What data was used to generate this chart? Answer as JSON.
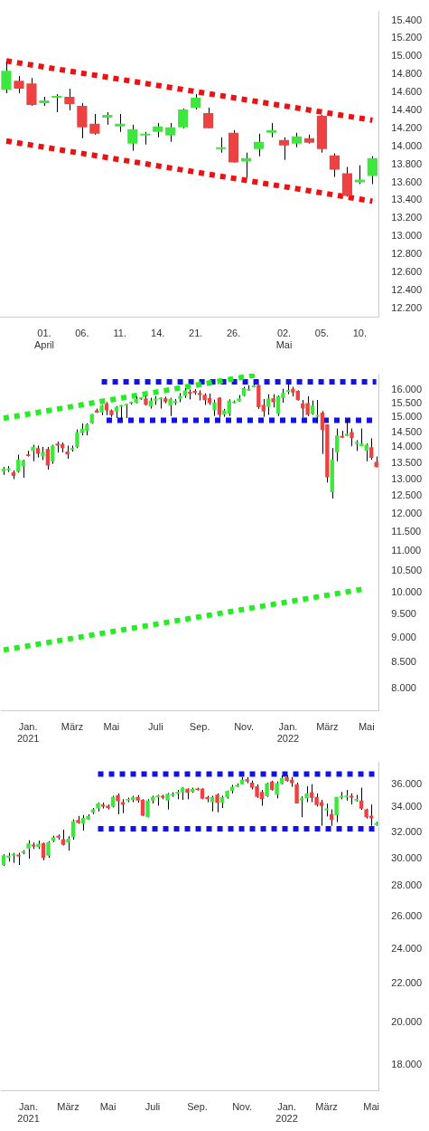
{
  "chart_data": [
    {
      "type": "candlestick",
      "categories": [
        null,
        null,
        null,
        "01.\nApril",
        null,
        null,
        "06.",
        null,
        null,
        "11.",
        null,
        null,
        "14.",
        null,
        null,
        "21.",
        null,
        null,
        "26.",
        null,
        null,
        null,
        "02.\nMai",
        null,
        null,
        "05.",
        null,
        null,
        "10.",
        null
      ],
      "ohlc": [
        [
          14630,
          14930,
          14590,
          14840
        ],
        [
          14730,
          14780,
          14590,
          14640
        ],
        [
          14700,
          14760,
          14450,
          14460
        ],
        [
          14480,
          14550,
          14450,
          14510
        ],
        [
          14540,
          14580,
          14380,
          14560
        ],
        [
          14550,
          14640,
          14400,
          14470
        ],
        [
          14450,
          14480,
          14090,
          14210
        ],
        [
          14250,
          14360,
          14130,
          14140
        ],
        [
          14320,
          14380,
          14240,
          14350
        ],
        [
          14220,
          14360,
          14160,
          14250
        ],
        [
          14030,
          14240,
          13950,
          14190
        ],
        [
          14120,
          14160,
          14020,
          14140
        ],
        [
          14160,
          14260,
          14100,
          14220
        ],
        [
          14120,
          14260,
          14050,
          14210
        ],
        [
          14210,
          14420,
          14200,
          14410
        ],
        [
          14430,
          14580,
          14410,
          14540
        ],
        [
          14370,
          14430,
          14200,
          14200
        ],
        [
          13970,
          14100,
          13930,
          13990
        ],
        [
          14150,
          14180,
          13820,
          13820
        ],
        [
          13830,
          13930,
          13650,
          13870
        ],
        [
          13970,
          14140,
          13890,
          14050
        ],
        [
          14150,
          14260,
          14100,
          14180
        ],
        [
          14070,
          14100,
          13850,
          14010
        ],
        [
          14030,
          14150,
          13990,
          14110
        ],
        [
          14090,
          14130,
          14030,
          14040
        ],
        [
          14340,
          14350,
          13930,
          13970
        ],
        [
          13900,
          13920,
          13660,
          13740
        ],
        [
          13700,
          13770,
          13440,
          13450
        ],
        [
          13600,
          13790,
          13580,
          13630
        ],
        [
          13670,
          13890,
          13580,
          13870
        ]
      ],
      "colors": [
        "#3de83d",
        "#ee4141",
        "#ee4141",
        "#3de83d",
        "#3de83d",
        "#ee4141",
        "#ee4141",
        "#ee4141",
        "#3de83d",
        "#3de83d",
        "#3de83d",
        "#3de83d",
        "#3de83d",
        "#3de83d",
        "#3de83d",
        "#3de83d",
        "#ee4141",
        "#3de83d",
        "#ee4141",
        "#3de83d",
        "#3de83d",
        "#3de83d",
        "#ee4141",
        "#3de83d",
        "#ee4141",
        "#ee4141",
        "#ee4141",
        "#ee4141",
        "#3de83d",
        "#3de83d"
      ],
      "series": [
        {
          "type": "line",
          "color": "#ee1111",
          "line_style": "dotted",
          "values": [
            14950,
            null,
            null,
            null,
            null,
            null,
            null,
            null,
            null,
            null,
            null,
            null,
            null,
            null,
            null,
            null,
            null,
            null,
            null,
            null,
            null,
            null,
            null,
            null,
            null,
            null,
            null,
            null,
            null,
            14290
          ]
        },
        {
          "type": "line",
          "color": "#ee1111",
          "line_style": "dotted",
          "values": [
            14060,
            null,
            null,
            null,
            null,
            null,
            null,
            null,
            null,
            null,
            null,
            null,
            null,
            null,
            null,
            null,
            null,
            null,
            null,
            null,
            null,
            null,
            null,
            null,
            null,
            null,
            null,
            null,
            null,
            13390
          ]
        }
      ],
      "ylim": [
        12100,
        15500
      ],
      "yticks": [
        {
          "value": 12200,
          "label": "12.200"
        },
        {
          "value": 12400,
          "label": "12.400"
        },
        {
          "value": 12600,
          "label": "12.600"
        },
        {
          "value": 12800,
          "label": "12.800"
        },
        {
          "value": 13000,
          "label": "13.000"
        },
        {
          "value": 13200,
          "label": "13.200"
        },
        {
          "value": 13400,
          "label": "13.400"
        },
        {
          "value": 13600,
          "label": "13.600"
        },
        {
          "value": 13800,
          "label": "13.800"
        },
        {
          "value": 14000,
          "label": "14.000"
        },
        {
          "value": 14200,
          "label": "14.200"
        },
        {
          "value": 14400,
          "label": "14.400"
        },
        {
          "value": 14600,
          "label": "14.600"
        },
        {
          "value": 14800,
          "label": "14.800"
        },
        {
          "value": 15000,
          "label": "15.000"
        },
        {
          "value": 15200,
          "label": "15.200"
        },
        {
          "value": 15400,
          "label": "15.400"
        }
      ]
    },
    {
      "type": "candlestick",
      "log": true,
      "categories": [
        null,
        null,
        null,
        null,
        null,
        "Jan.\n2021",
        null,
        null,
        null,
        null,
        null,
        null,
        null,
        null,
        "März",
        null,
        null,
        null,
        null,
        null,
        null,
        null,
        "Mai",
        null,
        null,
        null,
        null,
        null,
        null,
        null,
        null,
        "Juli",
        null,
        null,
        null,
        null,
        null,
        null,
        null,
        null,
        "Sep.",
        null,
        null,
        null,
        null,
        null,
        null,
        null,
        null,
        "Nov.",
        null,
        null,
        null,
        null,
        null,
        null,
        null,
        null,
        "Jan.\n2022",
        null,
        null,
        null,
        null,
        null,
        null,
        null,
        "März",
        null,
        null,
        null,
        null,
        null,
        null,
        null,
        "Mai",
        null,
        null
      ],
      "ohlc": [
        [
          13240,
          13370,
          13130,
          13320
        ],
        [
          13270,
          13400,
          13220,
          13330
        ],
        [
          13210,
          13270,
          13000,
          13100
        ],
        [
          13230,
          13760,
          13200,
          13600
        ],
        [
          13400,
          13600,
          13040,
          13580
        ],
        [
          13770,
          13880,
          13700,
          13720
        ],
        [
          13880,
          14080,
          13550,
          14010
        ],
        [
          13970,
          14050,
          13670,
          13790
        ],
        [
          13700,
          14010,
          13590,
          13850
        ],
        [
          13940,
          14010,
          13290,
          13420
        ],
        [
          13550,
          14080,
          13470,
          14050
        ],
        [
          14120,
          14180,
          13830,
          14050
        ],
        [
          14100,
          14150,
          13830,
          13970
        ],
        [
          13860,
          14050,
          13630,
          13770
        ],
        [
          13920,
          14050,
          13860,
          13970
        ],
        [
          14010,
          14590,
          13970,
          14490
        ],
        [
          14470,
          14790,
          14390,
          14610
        ],
        [
          14530,
          14800,
          14390,
          14760
        ],
        [
          14800,
          15120,
          14780,
          15110
        ],
        [
          15250,
          15310,
          15160,
          15170
        ],
        [
          15180,
          15440,
          15080,
          15420
        ],
        [
          15480,
          15540,
          15080,
          15250
        ],
        [
          15250,
          15280,
          15020,
          15080
        ],
        [
          15210,
          15400,
          14980,
          15370
        ],
        [
          15380,
          15440,
          14930,
          15430
        ],
        [
          15420,
          15480,
          14980,
          15470
        ],
        [
          15490,
          15560,
          15450,
          15550
        ],
        [
          15520,
          15750,
          15500,
          15650
        ],
        [
          15650,
          15720,
          15620,
          15710
        ],
        [
          15670,
          15760,
          15420,
          15440
        ],
        [
          15390,
          15700,
          15310,
          15600
        ],
        [
          15600,
          15760,
          15440,
          15670
        ],
        [
          15650,
          15720,
          15310,
          15700
        ],
        [
          15680,
          15740,
          15500,
          15550
        ],
        [
          15420,
          15700,
          15050,
          15660
        ],
        [
          15520,
          15650,
          15440,
          15580
        ],
        [
          15660,
          15870,
          15540,
          15770
        ],
        [
          15770,
          16050,
          15690,
          15970
        ],
        [
          15920,
          16000,
          15640,
          15840
        ],
        [
          15950,
          16020,
          15810,
          15880
        ],
        [
          15880,
          15970,
          15600,
          15800
        ],
        [
          15810,
          15860,
          15440,
          15610
        ],
        [
          15690,
          15850,
          15440,
          15510
        ],
        [
          15260,
          15630,
          15050,
          15530
        ],
        [
          15700,
          15720,
          15000,
          15090
        ],
        [
          15100,
          15300,
          15020,
          15250
        ],
        [
          15130,
          15640,
          15050,
          15600
        ],
        [
          15510,
          15600,
          15500,
          15560
        ],
        [
          15560,
          15800,
          15550,
          15680
        ],
        [
          15780,
          16100,
          15750,
          16050
        ],
        [
          15960,
          16160,
          15950,
          16020
        ],
        [
          16090,
          16200,
          16080,
          16150
        ],
        [
          16170,
          16180,
          15300,
          15360
        ],
        [
          15440,
          15650,
          15020,
          15210
        ],
        [
          15370,
          15830,
          15090,
          15670
        ],
        [
          15680,
          15830,
          15350,
          15540
        ],
        [
          15140,
          15780,
          15050,
          15750
        ],
        [
          15690,
          16030,
          15520,
          15880
        ],
        [
          15920,
          16220,
          15830,
          15980
        ],
        [
          16030,
          16100,
          15750,
          15890
        ],
        [
          15950,
          15970,
          15600,
          15610
        ],
        [
          15490,
          15620,
          15000,
          15310
        ],
        [
          15510,
          15750,
          15050,
          15090
        ],
        [
          15120,
          15600,
          15090,
          15420
        ],
        [
          15030,
          15620,
          14800,
          15080
        ],
        [
          15170,
          15220,
          13780,
          14570
        ],
        [
          14760,
          14760,
          12900,
          13060
        ],
        [
          12610,
          13970,
          12430,
          13600
        ],
        [
          13830,
          14620,
          13550,
          14390
        ],
        [
          14370,
          14540,
          14300,
          14310
        ],
        [
          14370,
          14930,
          14360,
          14440
        ],
        [
          14500,
          14620,
          14030,
          14300
        ],
        [
          14110,
          14230,
          13880,
          14170
        ],
        [
          14040,
          14620,
          14030,
          14120
        ],
        [
          13880,
          14120,
          13550,
          14080
        ],
        [
          14000,
          14290,
          13600,
          13660
        ],
        [
          13530,
          13700,
          13360,
          13370
        ]
      ],
      "colors": [
        "#3de83d",
        "#3de83d",
        "#ee4141",
        "#3de83d",
        "#3de83d",
        "#ee4141",
        "#3de83d",
        "#ee4141",
        "#3de83d",
        "#ee4141",
        "#3de83d",
        "#ee4141",
        "#ee4141",
        "#ee4141",
        "#3de83d",
        "#3de83d",
        "#3de83d",
        "#3de83d",
        "#3de83d",
        "#ee4141",
        "#3de83d",
        "#ee4141",
        "#ee4141",
        "#3de83d",
        "#3de83d",
        "#3de83d",
        "#3de83d",
        "#3de83d",
        "#3de83d",
        "#ee4141",
        "#3de83d",
        "#3de83d",
        "#3de83d",
        "#ee4141",
        "#3de83d",
        "#3de83d",
        "#3de83d",
        "#3de83d",
        "#ee4141",
        "#ee4141",
        "#ee4141",
        "#ee4141",
        "#ee4141",
        "#3de83d",
        "#ee4141",
        "#3de83d",
        "#3de83d",
        "#3de83d",
        "#3de83d",
        "#3de83d",
        "#3de83d",
        "#3de83d",
        "#ee4141",
        "#ee4141",
        "#3de83d",
        "#ee4141",
        "#3de83d",
        "#3de83d",
        "#3de83d",
        "#ee4141",
        "#ee4141",
        "#ee4141",
        "#ee4141",
        "#3de83d",
        "#3de83d",
        "#ee4141",
        "#ee4141",
        "#3de83d",
        "#3de83d",
        "#ee4141",
        "#3de83d",
        "#ee4141",
        "#3de83d",
        "#3de83d",
        "#3de83d",
        "#ee4141",
        "#ee4141"
      ],
      "series": [
        {
          "type": "line",
          "color": "#22ee22",
          "line_style": "dotted",
          "values": [
            14970,
            null,
            null,
            null,
            null,
            null,
            null,
            null,
            null,
            null,
            null,
            null,
            null,
            null,
            null,
            null,
            null,
            null,
            null,
            null,
            null,
            null,
            null,
            null,
            null,
            null,
            null,
            null,
            null,
            null,
            null,
            null,
            null,
            null,
            null,
            null,
            null,
            null,
            null,
            null,
            null,
            null,
            null,
            null,
            null,
            null,
            null,
            null,
            null,
            null,
            null,
            null,
            16570,
            null,
            null,
            null,
            null,
            null,
            null,
            null,
            null,
            null,
            null,
            null,
            null,
            null,
            null,
            null,
            null,
            null,
            null,
            null,
            null,
            null,
            null,
            null,
            null
          ]
        },
        {
          "type": "line",
          "color": "#22ee22",
          "line_style": "dotted",
          "values": [
            8750,
            null,
            null,
            null,
            null,
            null,
            null,
            null,
            null,
            null,
            null,
            null,
            null,
            null,
            null,
            null,
            null,
            null,
            null,
            null,
            null,
            null,
            null,
            null,
            null,
            null,
            null,
            null,
            null,
            null,
            null,
            null,
            null,
            null,
            null,
            null,
            null,
            null,
            null,
            null,
            null,
            null,
            null,
            null,
            null,
            null,
            null,
            null,
            null,
            null,
            null,
            null,
            null,
            null,
            null,
            null,
            null,
            null,
            null,
            null,
            null,
            null,
            null,
            null,
            null,
            null,
            null,
            null,
            null,
            null,
            null,
            null,
            null,
            null,
            10090,
            null,
            null
          ]
        },
        {
          "type": "line",
          "color": "#1111ee",
          "line_style": "dotted",
          "values": [
            null,
            null,
            null,
            null,
            null,
            null,
            null,
            null,
            null,
            null,
            null,
            null,
            null,
            null,
            null,
            null,
            null,
            null,
            null,
            null,
            16290,
            null,
            null,
            null,
            null,
            null,
            null,
            null,
            null,
            null,
            null,
            null,
            null,
            null,
            null,
            null,
            null,
            null,
            null,
            null,
            null,
            null,
            null,
            null,
            null,
            null,
            null,
            null,
            null,
            null,
            null,
            null,
            null,
            null,
            null,
            null,
            null,
            null,
            null,
            null,
            null,
            null,
            null,
            null,
            null,
            null,
            null,
            null,
            null,
            null,
            null,
            null,
            null,
            null,
            null,
            null,
            16290
          ]
        },
        {
          "type": "line",
          "color": "#1111ee",
          "line_style": "dotted",
          "values": [
            null,
            null,
            null,
            null,
            null,
            null,
            null,
            null,
            null,
            null,
            null,
            null,
            null,
            null,
            null,
            null,
            null,
            null,
            null,
            null,
            null,
            14900,
            null,
            null,
            null,
            null,
            null,
            null,
            null,
            null,
            null,
            null,
            null,
            null,
            null,
            null,
            null,
            null,
            null,
            null,
            null,
            null,
            null,
            null,
            null,
            null,
            null,
            null,
            null,
            null,
            null,
            null,
            null,
            null,
            null,
            null,
            null,
            null,
            null,
            null,
            null,
            null,
            null,
            null,
            null,
            null,
            null,
            null,
            null,
            null,
            null,
            null,
            null,
            null,
            null,
            null,
            14900
          ]
        }
      ],
      "ylim": [
        7600,
        16600
      ],
      "yticks": [
        {
          "value": 8000,
          "label": "8.000"
        },
        {
          "value": 8500,
          "label": "8.500"
        },
        {
          "value": 9000,
          "label": "9.000"
        },
        {
          "value": 9500,
          "label": "9.500"
        },
        {
          "value": 10000,
          "label": "10.000"
        },
        {
          "value": 10500,
          "label": "10.500"
        },
        {
          "value": 11000,
          "label": "11.000"
        },
        {
          "value": 11500,
          "label": "11.500"
        },
        {
          "value": 12000,
          "label": "12.000"
        },
        {
          "value": 12500,
          "label": "12.500"
        },
        {
          "value": 13000,
          "label": "13.000"
        },
        {
          "value": 13500,
          "label": "13.500"
        },
        {
          "value": 14000,
          "label": "14.000"
        },
        {
          "value": 14500,
          "label": "14.500"
        },
        {
          "value": 15000,
          "label": "15.000"
        },
        {
          "value": 15500,
          "label": "15.500"
        },
        {
          "value": 16000,
          "label": "16.000"
        }
      ]
    },
    {
      "type": "candlestick",
      "log": true,
      "categories": [
        null,
        null,
        null,
        null,
        null,
        "Jan.\n2021",
        null,
        null,
        null,
        null,
        null,
        null,
        null,
        "März",
        null,
        null,
        null,
        null,
        null,
        null,
        null,
        "Mai",
        null,
        null,
        null,
        null,
        null,
        null,
        null,
        null,
        "Juli",
        null,
        null,
        null,
        null,
        null,
        null,
        null,
        null,
        "Sep.",
        null,
        null,
        null,
        null,
        null,
        null,
        null,
        null,
        "Nov.",
        null,
        null,
        null,
        null,
        null,
        null,
        null,
        null,
        "Jan.\n2022",
        null,
        null,
        null,
        null,
        null,
        null,
        null,
        "März",
        null,
        null,
        null,
        null,
        null,
        null,
        null,
        null,
        "Mai",
        null
      ],
      "ohlc": [
        [
          29480,
          30290,
          29430,
          30220
        ],
        [
          30040,
          30400,
          29750,
          30180
        ],
        [
          30180,
          30400,
          29660,
          30320
        ],
        [
          30270,
          30400,
          29500,
          30130
        ],
        [
          30390,
          30600,
          30290,
          30530
        ],
        [
          30730,
          31360,
          29960,
          31110
        ],
        [
          31020,
          31180,
          30690,
          30890
        ],
        [
          30840,
          31330,
          30690,
          31090
        ],
        [
          31130,
          31180,
          29850,
          30020
        ],
        [
          30180,
          31290,
          30020,
          31220
        ],
        [
          31330,
          31710,
          31220,
          31580
        ],
        [
          31710,
          31800,
          31400,
          31560
        ],
        [
          31440,
          32190,
          30960,
          31000
        ],
        [
          31180,
          31670,
          30560,
          31470
        ],
        [
          31600,
          33010,
          31400,
          32870
        ],
        [
          32970,
          33290,
          32660,
          32730
        ],
        [
          32660,
          33370,
          32120,
          33130
        ],
        [
          33010,
          33430,
          32970,
          33290
        ],
        [
          33580,
          33950,
          33440,
          33840
        ],
        [
          33910,
          34400,
          33670,
          34330
        ],
        [
          34250,
          34400,
          33910,
          34080
        ],
        [
          34150,
          34250,
          33840,
          33950
        ],
        [
          34080,
          35000,
          34000,
          34900
        ],
        [
          35050,
          35200,
          33440,
          34530
        ],
        [
          34450,
          34700,
          33530,
          34250
        ],
        [
          34580,
          34830,
          34450,
          34720
        ],
        [
          34630,
          35000,
          34450,
          34900
        ],
        [
          34900,
          35050,
          34400,
          34580
        ],
        [
          34650,
          34700,
          33300,
          33320
        ],
        [
          33200,
          34700,
          33180,
          34580
        ],
        [
          34580,
          35000,
          34330,
          34900
        ],
        [
          34880,
          35080,
          34150,
          35020
        ],
        [
          35000,
          35080,
          34700,
          34830
        ],
        [
          34580,
          35250,
          33840,
          35180
        ],
        [
          35010,
          35300,
          34900,
          35150
        ],
        [
          35200,
          35500,
          34700,
          35330
        ],
        [
          35280,
          35750,
          34650,
          35700
        ],
        [
          35600,
          35650,
          34700,
          35250
        ],
        [
          35350,
          35700,
          35250,
          35580
        ],
        [
          35630,
          35700,
          35450,
          35500
        ],
        [
          35600,
          35650,
          34700,
          34750
        ],
        [
          34880,
          35000,
          34450,
          34700
        ],
        [
          34450,
          35000,
          33670,
          34880
        ],
        [
          35100,
          35200,
          33600,
          34400
        ],
        [
          34400,
          35000,
          33950,
          34880
        ],
        [
          34880,
          35450,
          34750,
          35400
        ],
        [
          35400,
          35950,
          35200,
          35780
        ],
        [
          35780,
          36080,
          35750,
          35950
        ],
        [
          36000,
          36650,
          36000,
          36400
        ],
        [
          36450,
          36650,
          36100,
          36250
        ],
        [
          36150,
          36320,
          35550,
          35700
        ],
        [
          35820,
          36000,
          34820,
          34900
        ],
        [
          35320,
          35500,
          34150,
          34700
        ],
        [
          34950,
          36150,
          34900,
          36080
        ],
        [
          36250,
          36320,
          35450,
          35500
        ],
        [
          35100,
          36250,
          34780,
          36100
        ],
        [
          36050,
          36800,
          36000,
          36550
        ],
        [
          36650,
          36800,
          36250,
          36300
        ],
        [
          36400,
          36650,
          35780,
          36100
        ],
        [
          36000,
          36150,
          34330,
          34330
        ],
        [
          34580,
          34950,
          33200,
          34780
        ],
        [
          34780,
          35820,
          34450,
          35200
        ],
        [
          35280,
          36000,
          34450,
          34820
        ],
        [
          34900,
          35200,
          34080,
          34200
        ],
        [
          34450,
          34650,
          32500,
          34120
        ],
        [
          33770,
          34330,
          33260,
          33910
        ],
        [
          33440,
          33840,
          32500,
          32970
        ],
        [
          33360,
          34900,
          32800,
          34900
        ],
        [
          34830,
          35330,
          34700,
          35000
        ],
        [
          34880,
          35500,
          34580,
          35020
        ],
        [
          35000,
          35200,
          34250,
          34830
        ],
        [
          34580,
          35080,
          34500,
          34720
        ],
        [
          34580,
          35700,
          33810,
          33900
        ],
        [
          33840,
          33900,
          33090,
          33180
        ],
        [
          33320,
          34250,
          32500,
          33090
        ],
        [
          32570,
          32820,
          32500,
          32710
        ]
      ],
      "colors": [
        "#3de83d",
        "#3de83d",
        "#3de83d",
        "#ee4141",
        "#3de83d",
        "#3de83d",
        "#ee4141",
        "#3de83d",
        "#ee4141",
        "#3de83d",
        "#3de83d",
        "#ee4141",
        "#ee4141",
        "#3de83d",
        "#3de83d",
        "#ee4141",
        "#3de83d",
        "#3de83d",
        "#3de83d",
        "#3de83d",
        "#ee4141",
        "#ee4141",
        "#3de83d",
        "#ee4141",
        "#ee4141",
        "#3de83d",
        "#3de83d",
        "#ee4141",
        "#ee4141",
        "#3de83d",
        "#3de83d",
        "#3de83d",
        "#ee4141",
        "#3de83d",
        "#3de83d",
        "#3de83d",
        "#3de83d",
        "#ee4141",
        "#3de83d",
        "#ee4141",
        "#ee4141",
        "#ee4141",
        "#3de83d",
        "#ee4141",
        "#3de83d",
        "#3de83d",
        "#3de83d",
        "#3de83d",
        "#3de83d",
        "#ee4141",
        "#ee4141",
        "#ee4141",
        "#ee4141",
        "#3de83d",
        "#ee4141",
        "#3de83d",
        "#3de83d",
        "#ee4141",
        "#ee4141",
        "#ee4141",
        "#3de83d",
        "#3de83d",
        "#ee4141",
        "#ee4141",
        "#ee4141",
        "#3de83d",
        "#ee4141",
        "#3de83d",
        "#3de83d",
        "#3de83d",
        "#ee4141",
        "#3de83d",
        "#ee4141",
        "#ee4141",
        "#ee4141",
        "#3de83d"
      ],
      "series": [
        {
          "type": "line",
          "color": "#1111ee",
          "line_style": "dotted",
          "values": [
            null,
            null,
            null,
            null,
            null,
            null,
            null,
            null,
            null,
            null,
            null,
            null,
            null,
            null,
            null,
            null,
            null,
            null,
            null,
            36930,
            null,
            null,
            null,
            null,
            null,
            null,
            null,
            null,
            null,
            null,
            null,
            null,
            null,
            null,
            null,
            null,
            null,
            null,
            null,
            null,
            null,
            null,
            null,
            null,
            null,
            null,
            null,
            null,
            null,
            null,
            null,
            null,
            null,
            null,
            null,
            null,
            null,
            null,
            null,
            null,
            null,
            null,
            null,
            null,
            null,
            null,
            null,
            null,
            null,
            null,
            null,
            null,
            null,
            null,
            null,
            36930
          ]
        },
        {
          "type": "line",
          "color": "#1111ee",
          "line_style": "dotted",
          "values": [
            null,
            null,
            null,
            null,
            null,
            null,
            null,
            null,
            null,
            null,
            null,
            null,
            null,
            null,
            null,
            null,
            null,
            null,
            null,
            32250,
            null,
            null,
            null,
            null,
            null,
            null,
            null,
            null,
            null,
            null,
            null,
            null,
            null,
            null,
            null,
            null,
            null,
            null,
            null,
            null,
            null,
            null,
            null,
            null,
            null,
            null,
            null,
            null,
            null,
            null,
            null,
            null,
            null,
            null,
            null,
            null,
            null,
            null,
            null,
            null,
            null,
            null,
            null,
            null,
            null,
            null,
            null,
            null,
            null,
            null,
            null,
            null,
            null,
            null,
            null,
            32250
          ]
        }
      ],
      "ylim": [
        16900,
        38000
      ],
      "yticks": [
        {
          "value": 18000,
          "label": "18.000"
        },
        {
          "value": 20000,
          "label": "20.000"
        },
        {
          "value": 22000,
          "label": "22.000"
        },
        {
          "value": 24000,
          "label": "24.000"
        },
        {
          "value": 26000,
          "label": "26.000"
        },
        {
          "value": 28000,
          "label": "28.000"
        },
        {
          "value": 30000,
          "label": "30.000"
        },
        {
          "value": 32000,
          "label": "32.000"
        },
        {
          "value": 34000,
          "label": "34.000"
        },
        {
          "value": 36000,
          "label": "36.000"
        }
      ]
    }
  ]
}
